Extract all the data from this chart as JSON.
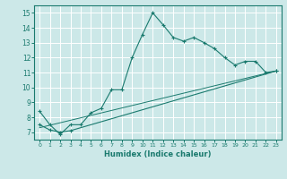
{
  "title": "",
  "xlabel": "Humidex (Indice chaleur)",
  "bg_color": "#cce8e8",
  "line_color": "#1a7a6e",
  "xlim": [
    -0.5,
    23.5
  ],
  "ylim": [
    6.5,
    15.5
  ],
  "xticks": [
    0,
    1,
    2,
    3,
    4,
    5,
    6,
    7,
    8,
    9,
    10,
    11,
    12,
    13,
    14,
    15,
    16,
    17,
    18,
    19,
    20,
    21,
    22,
    23
  ],
  "yticks": [
    7,
    8,
    9,
    10,
    11,
    12,
    13,
    14,
    15
  ],
  "curve1_x": [
    0,
    1,
    2,
    3,
    4,
    5,
    6,
    7,
    8,
    9,
    10,
    11,
    12,
    13,
    14,
    15,
    16,
    17,
    18,
    19,
    20,
    21,
    22,
    23
  ],
  "curve1_y": [
    8.4,
    7.5,
    6.85,
    7.5,
    7.5,
    8.3,
    8.6,
    9.85,
    9.85,
    12.0,
    13.55,
    15.0,
    14.2,
    13.35,
    13.1,
    13.35,
    13.0,
    12.6,
    12.0,
    11.5,
    11.75,
    11.75,
    11.0,
    11.1
  ],
  "curve2_x": [
    0,
    1,
    2,
    3,
    23
  ],
  "curve2_y": [
    7.5,
    7.15,
    7.0,
    7.1,
    11.1
  ],
  "curve3_x": [
    0,
    23
  ],
  "curve3_y": [
    7.3,
    11.1
  ]
}
